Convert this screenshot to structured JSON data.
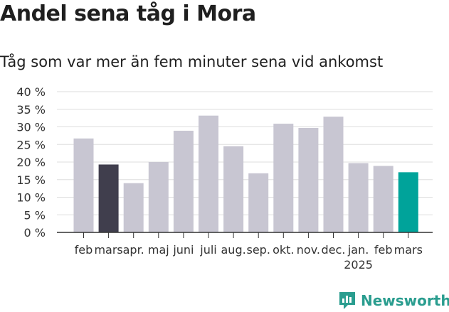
{
  "title": "Andel sena tåg i Mora",
  "subtitle": "Tåg som var mer än fem minuter sena vid ankomst",
  "brand": {
    "name": "Newsworthy",
    "color": "#2a9d8f"
  },
  "colors": {
    "default": "#c8c6d2",
    "highlight_previous": "#403e4d",
    "highlight_current": "#00a39a",
    "grid": "#dddddd",
    "axis": "#333333"
  },
  "chart_data": {
    "type": "bar",
    "categories": [
      "feb",
      "mars",
      "apr.",
      "maj",
      "juni",
      "juli",
      "aug.",
      "sep.",
      "okt.",
      "nov.",
      "dec.",
      "jan.",
      "feb",
      "mars"
    ],
    "year_label": {
      "text": "2025",
      "category_index": 11
    },
    "values": [
      26.7,
      19.3,
      14.0,
      20.0,
      28.9,
      33.2,
      24.5,
      16.8,
      30.9,
      29.7,
      32.9,
      19.7,
      18.9,
      17.1
    ],
    "bar_colors": [
      "default",
      "highlight_previous",
      "default",
      "default",
      "default",
      "default",
      "default",
      "default",
      "default",
      "default",
      "default",
      "default",
      "default",
      "highlight_current"
    ],
    "yticks": [
      "0 %",
      "5 %",
      "10 %",
      "15 %",
      "20 %",
      "25 %",
      "30 %",
      "35 %",
      "40 %"
    ],
    "ylim": [
      0,
      40
    ],
    "grid": true
  }
}
